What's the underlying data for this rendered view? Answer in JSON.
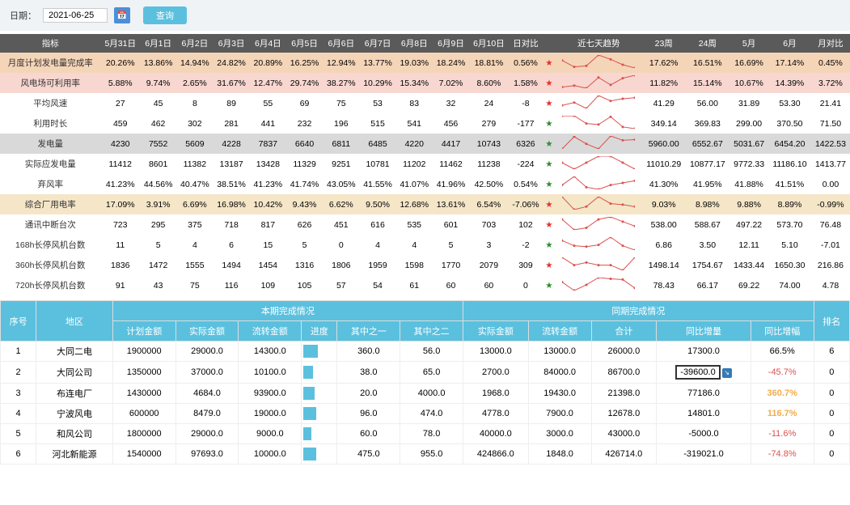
{
  "toolbar": {
    "date_label": "日期：",
    "date_value": "2021-06-25",
    "query_label": "查询"
  },
  "t1": {
    "headers": [
      "指标",
      "5月31日",
      "6月1日",
      "6月2日",
      "6月3日",
      "6月4日",
      "6月5日",
      "6月6日",
      "6月7日",
      "6月8日",
      "6月9日",
      "6月10日",
      "日对比",
      "",
      "近七天趋势",
      "23周",
      "24周",
      "5月",
      "6月",
      "月对比"
    ],
    "rows": [
      {
        "cls": "row-peach",
        "label": "月度计划发电量完成率",
        "d": [
          "20.26%",
          "13.86%",
          "14.94%",
          "24.82%",
          "20.89%",
          "16.25%",
          "12.94%",
          "13.77%",
          "19.03%",
          "18.24%",
          "18.81%"
        ],
        "cmp": "0.56%",
        "star": "red",
        "w": [
          "17.62%",
          "16.51%",
          "16.69%",
          "17.14%"
        ],
        "mcmp": "0.45%",
        "spark": [
          20,
          14,
          15,
          25,
          21,
          16,
          13
        ]
      },
      {
        "cls": "row-pink",
        "label": "风电场可利用率",
        "d": [
          "5.88%",
          "9.74%",
          "2.65%",
          "31.67%",
          "12.47%",
          "29.74%",
          "38.27%",
          "10.29%",
          "15.34%",
          "7.02%",
          "8.60%"
        ],
        "cmp": "1.58%",
        "star": "red",
        "w": [
          "11.82%",
          "15.14%",
          "10.67%",
          "14.39%"
        ],
        "mcmp": "3.72%",
        "spark": [
          6,
          10,
          3,
          32,
          12,
          30,
          38
        ]
      },
      {
        "cls": "row-white",
        "label": "平均风速",
        "d": [
          "27",
          "45",
          "8",
          "89",
          "55",
          "69",
          "75",
          "53",
          "83",
          "32",
          "24"
        ],
        "cmp": "-8",
        "star": "red",
        "w": [
          "41.29",
          "56.00",
          "31.89",
          "53.30"
        ],
        "mcmp": "21.41",
        "spark": [
          27,
          45,
          8,
          89,
          55,
          69,
          75
        ]
      },
      {
        "cls": "row-white",
        "label": "利用时长",
        "d": [
          "459",
          "462",
          "302",
          "281",
          "441",
          "232",
          "196",
          "515",
          "541",
          "456",
          "279"
        ],
        "cmp": "-177",
        "star": "green",
        "w": [
          "349.14",
          "369.83",
          "299.00",
          "370.50"
        ],
        "mcmp": "71.50",
        "spark": [
          459,
          462,
          302,
          281,
          441,
          232,
          196
        ]
      },
      {
        "cls": "row-gray",
        "label": "发电量",
        "d": [
          "4230",
          "7552",
          "5609",
          "4228",
          "7837",
          "6640",
          "6811",
          "6485",
          "4220",
          "4417",
          "10743"
        ],
        "cmp": "6326",
        "star": "green",
        "w": [
          "5960.00",
          "6552.67",
          "5031.67",
          "6454.20"
        ],
        "mcmp": "1422.53",
        "spark": [
          42,
          76,
          56,
          42,
          78,
          66,
          68
        ]
      },
      {
        "cls": "row-white",
        "label": "实际应发电量",
        "d": [
          "11412",
          "8601",
          "11382",
          "13187",
          "13428",
          "11329",
          "9251",
          "10781",
          "11202",
          "11462",
          "11238"
        ],
        "cmp": "-224",
        "star": "green",
        "w": [
          "11010.29",
          "10877.17",
          "9772.33",
          "11186.10"
        ],
        "mcmp": "1413.77",
        "spark": [
          11,
          9,
          11,
          13,
          13,
          11,
          9
        ]
      },
      {
        "cls": "row-white",
        "label": "弃风率",
        "d": [
          "41.23%",
          "44.56%",
          "40.47%",
          "38.51%",
          "41.23%",
          "41.74%",
          "43.05%",
          "41.55%",
          "41.07%",
          "41.96%",
          "42.50%"
        ],
        "cmp": "0.54%",
        "star": "green",
        "w": [
          "41.30%",
          "41.95%",
          "41.88%",
          "41.51%"
        ],
        "mcmp": "0.00",
        "spark": [
          41,
          45,
          40,
          39,
          41,
          42,
          43
        ]
      },
      {
        "cls": "row-beige",
        "label": "综合厂用电率",
        "d": [
          "17.09%",
          "3.91%",
          "6.69%",
          "16.98%",
          "10.42%",
          "9.43%",
          "6.62%",
          "9.50%",
          "12.68%",
          "13.61%",
          "6.54%"
        ],
        "cmp": "-7.06%",
        "star": "red",
        "w": [
          "9.03%",
          "8.98%",
          "9.88%",
          "8.89%"
        ],
        "mcmp": "-0.99%",
        "spark": [
          17,
          4,
          7,
          17,
          10,
          9,
          7
        ]
      },
      {
        "cls": "row-white",
        "label": "通讯中断台次",
        "d": [
          "723",
          "295",
          "375",
          "718",
          "817",
          "626",
          "451",
          "616",
          "535",
          "601",
          "703"
        ],
        "cmp": "102",
        "star": "red",
        "w": [
          "538.00",
          "588.67",
          "497.22",
          "573.70"
        ],
        "mcmp": "76.48",
        "spark": [
          72,
          30,
          38,
          72,
          82,
          63,
          45
        ]
      },
      {
        "cls": "row-white",
        "label": "168h长停风机台数",
        "d": [
          "11",
          "5",
          "4",
          "6",
          "15",
          "5",
          "0",
          "4",
          "4",
          "5",
          "3"
        ],
        "cmp": "-2",
        "star": "green",
        "w": [
          "6.86",
          "3.50",
          "12.11",
          "5.10"
        ],
        "mcmp": "-7.01",
        "spark": [
          11,
          5,
          4,
          6,
          15,
          5,
          0
        ]
      },
      {
        "cls": "row-white",
        "label": "360h长停风机台数",
        "d": [
          "1836",
          "1472",
          "1555",
          "1494",
          "1454",
          "1316",
          "1806",
          "1959",
          "1598",
          "1770",
          "2079"
        ],
        "cmp": "309",
        "star": "red",
        "w": [
          "1498.14",
          "1754.67",
          "1433.44",
          "1650.30"
        ],
        "mcmp": "216.86",
        "spark": [
          18,
          15,
          16,
          15,
          15,
          13,
          18
        ]
      },
      {
        "cls": "row-white",
        "label": "720h长停风机台数",
        "d": [
          "91",
          "43",
          "75",
          "116",
          "109",
          "105",
          "57",
          "54",
          "61",
          "60",
          "60"
        ],
        "cmp": "0",
        "star": "green",
        "w": [
          "78.43",
          "66.17",
          "69.22",
          "74.00"
        ],
        "mcmp": "4.78",
        "spark": [
          91,
          43,
          75,
          116,
          109,
          105,
          57
        ]
      }
    ]
  },
  "t2": {
    "h_top": {
      "seq": "序号",
      "region": "地区",
      "cur": "本期完成情况",
      "same": "同期完成情况",
      "rank": "排名"
    },
    "h_sub_cur": [
      "计划金额",
      "实际金额",
      "流转金额",
      "进度",
      "其中之一",
      "其中之二"
    ],
    "h_sub_same": [
      "实际金额",
      "流转金额",
      "合计",
      "同比增量",
      "同比增幅"
    ],
    "rows": [
      {
        "seq": "1",
        "region": "大同二电",
        "plan": "1900000",
        "actual": "29000.0",
        "flow": "14300.0",
        "prog": 45,
        "a1": "360.0",
        "a2": "56.0",
        "s_act": "13000.0",
        "s_flow": "13000.0",
        "total": "26000.0",
        "delta": "17300.0",
        "pct": "66.5%",
        "pct_cls": "",
        "rank": "6",
        "boxed": false
      },
      {
        "seq": "2",
        "region": "大同公司",
        "plan": "1350000",
        "actual": "37000.0",
        "flow": "10100.0",
        "prog": 30,
        "a1": "38.0",
        "a2": "65.0",
        "s_act": "2700.0",
        "s_flow": "84000.0",
        "total": "86700.0",
        "delta": "-39600.0",
        "pct": "-45.7%",
        "pct_cls": "neg-red",
        "rank": "0",
        "boxed": true
      },
      {
        "seq": "3",
        "region": "布连电厂",
        "plan": "1430000",
        "actual": "4684.0",
        "flow": "93900.0",
        "prog": 35,
        "a1": "20.0",
        "a2": "4000.0",
        "s_act": "1968.0",
        "s_flow": "19430.0",
        "total": "21398.0",
        "delta": "77186.0",
        "pct": "360.7%",
        "pct_cls": "pos-yellow",
        "rank": "0",
        "boxed": false
      },
      {
        "seq": "4",
        "region": "宁波风电",
        "plan": "600000",
        "actual": "8479.0",
        "flow": "19000.0",
        "prog": 40,
        "a1": "96.0",
        "a2": "474.0",
        "s_act": "4778.0",
        "s_flow": "7900.0",
        "total": "12678.0",
        "delta": "14801.0",
        "pct": "116.7%",
        "pct_cls": "pos-yellow",
        "rank": "0",
        "boxed": false
      },
      {
        "seq": "5",
        "region": "和风公司",
        "plan": "1800000",
        "actual": "29000.0",
        "flow": "9000.0",
        "prog": 25,
        "a1": "60.0",
        "a2": "78.0",
        "s_act": "40000.0",
        "s_flow": "3000.0",
        "total": "43000.0",
        "delta": "-5000.0",
        "pct": "-11.6%",
        "pct_cls": "neg-red",
        "rank": "0",
        "boxed": false
      },
      {
        "seq": "6",
        "region": "河北新能源",
        "plan": "1540000",
        "actual": "97693.0",
        "flow": "10000.0",
        "prog": 40,
        "a1": "475.0",
        "a2": "955.0",
        "s_act": "424866.0",
        "s_flow": "1848.0",
        "total": "426714.0",
        "delta": "-319021.0",
        "pct": "-74.8%",
        "pct_cls": "neg-red",
        "rank": "0",
        "boxed": false
      }
    ]
  },
  "colors": {
    "spark_red": "#d9534f",
    "spark_blue": "#4a90d9"
  }
}
